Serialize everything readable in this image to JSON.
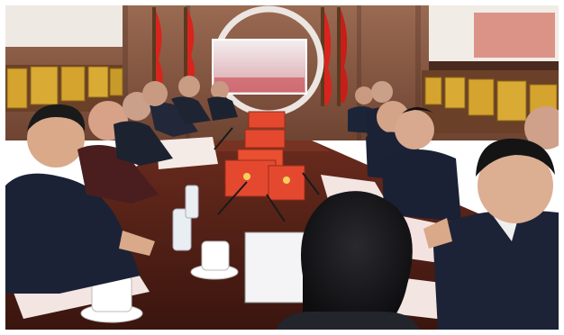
{
  "photo": {
    "alt": "",
    "palette": {
      "wall": "#8a5a43",
      "table": "#4b1f16",
      "folder_red": "#e4492f",
      "flag_red": "#d8241c",
      "suit": "#1b2236",
      "plaque_gold": "#d5a42e",
      "paper": "#f3e5e2"
    }
  }
}
